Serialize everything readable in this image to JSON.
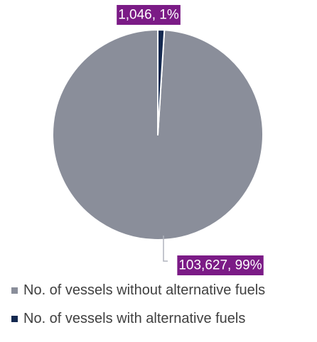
{
  "colors": {
    "label_bg": "#7b1b86",
    "label_text": "#ffffff",
    "leader_line": "#b0b4bd",
    "separator": "#ffffff"
  },
  "chart_data": {
    "type": "pie",
    "title": "",
    "start_angle_deg": 0,
    "direction": "counterclockwise",
    "legend_position": "bottom-left",
    "slices": [
      {
        "name": "No. of vessels without alternative fuels",
        "value": 103627,
        "percent": 99,
        "label": "103,627, 99%",
        "color": "#8a8e9a"
      },
      {
        "name": "No. of vessels with alternative fuels",
        "value": 1046,
        "percent": 1,
        "label": "1,046, 1%",
        "color": "#13284f"
      }
    ]
  }
}
